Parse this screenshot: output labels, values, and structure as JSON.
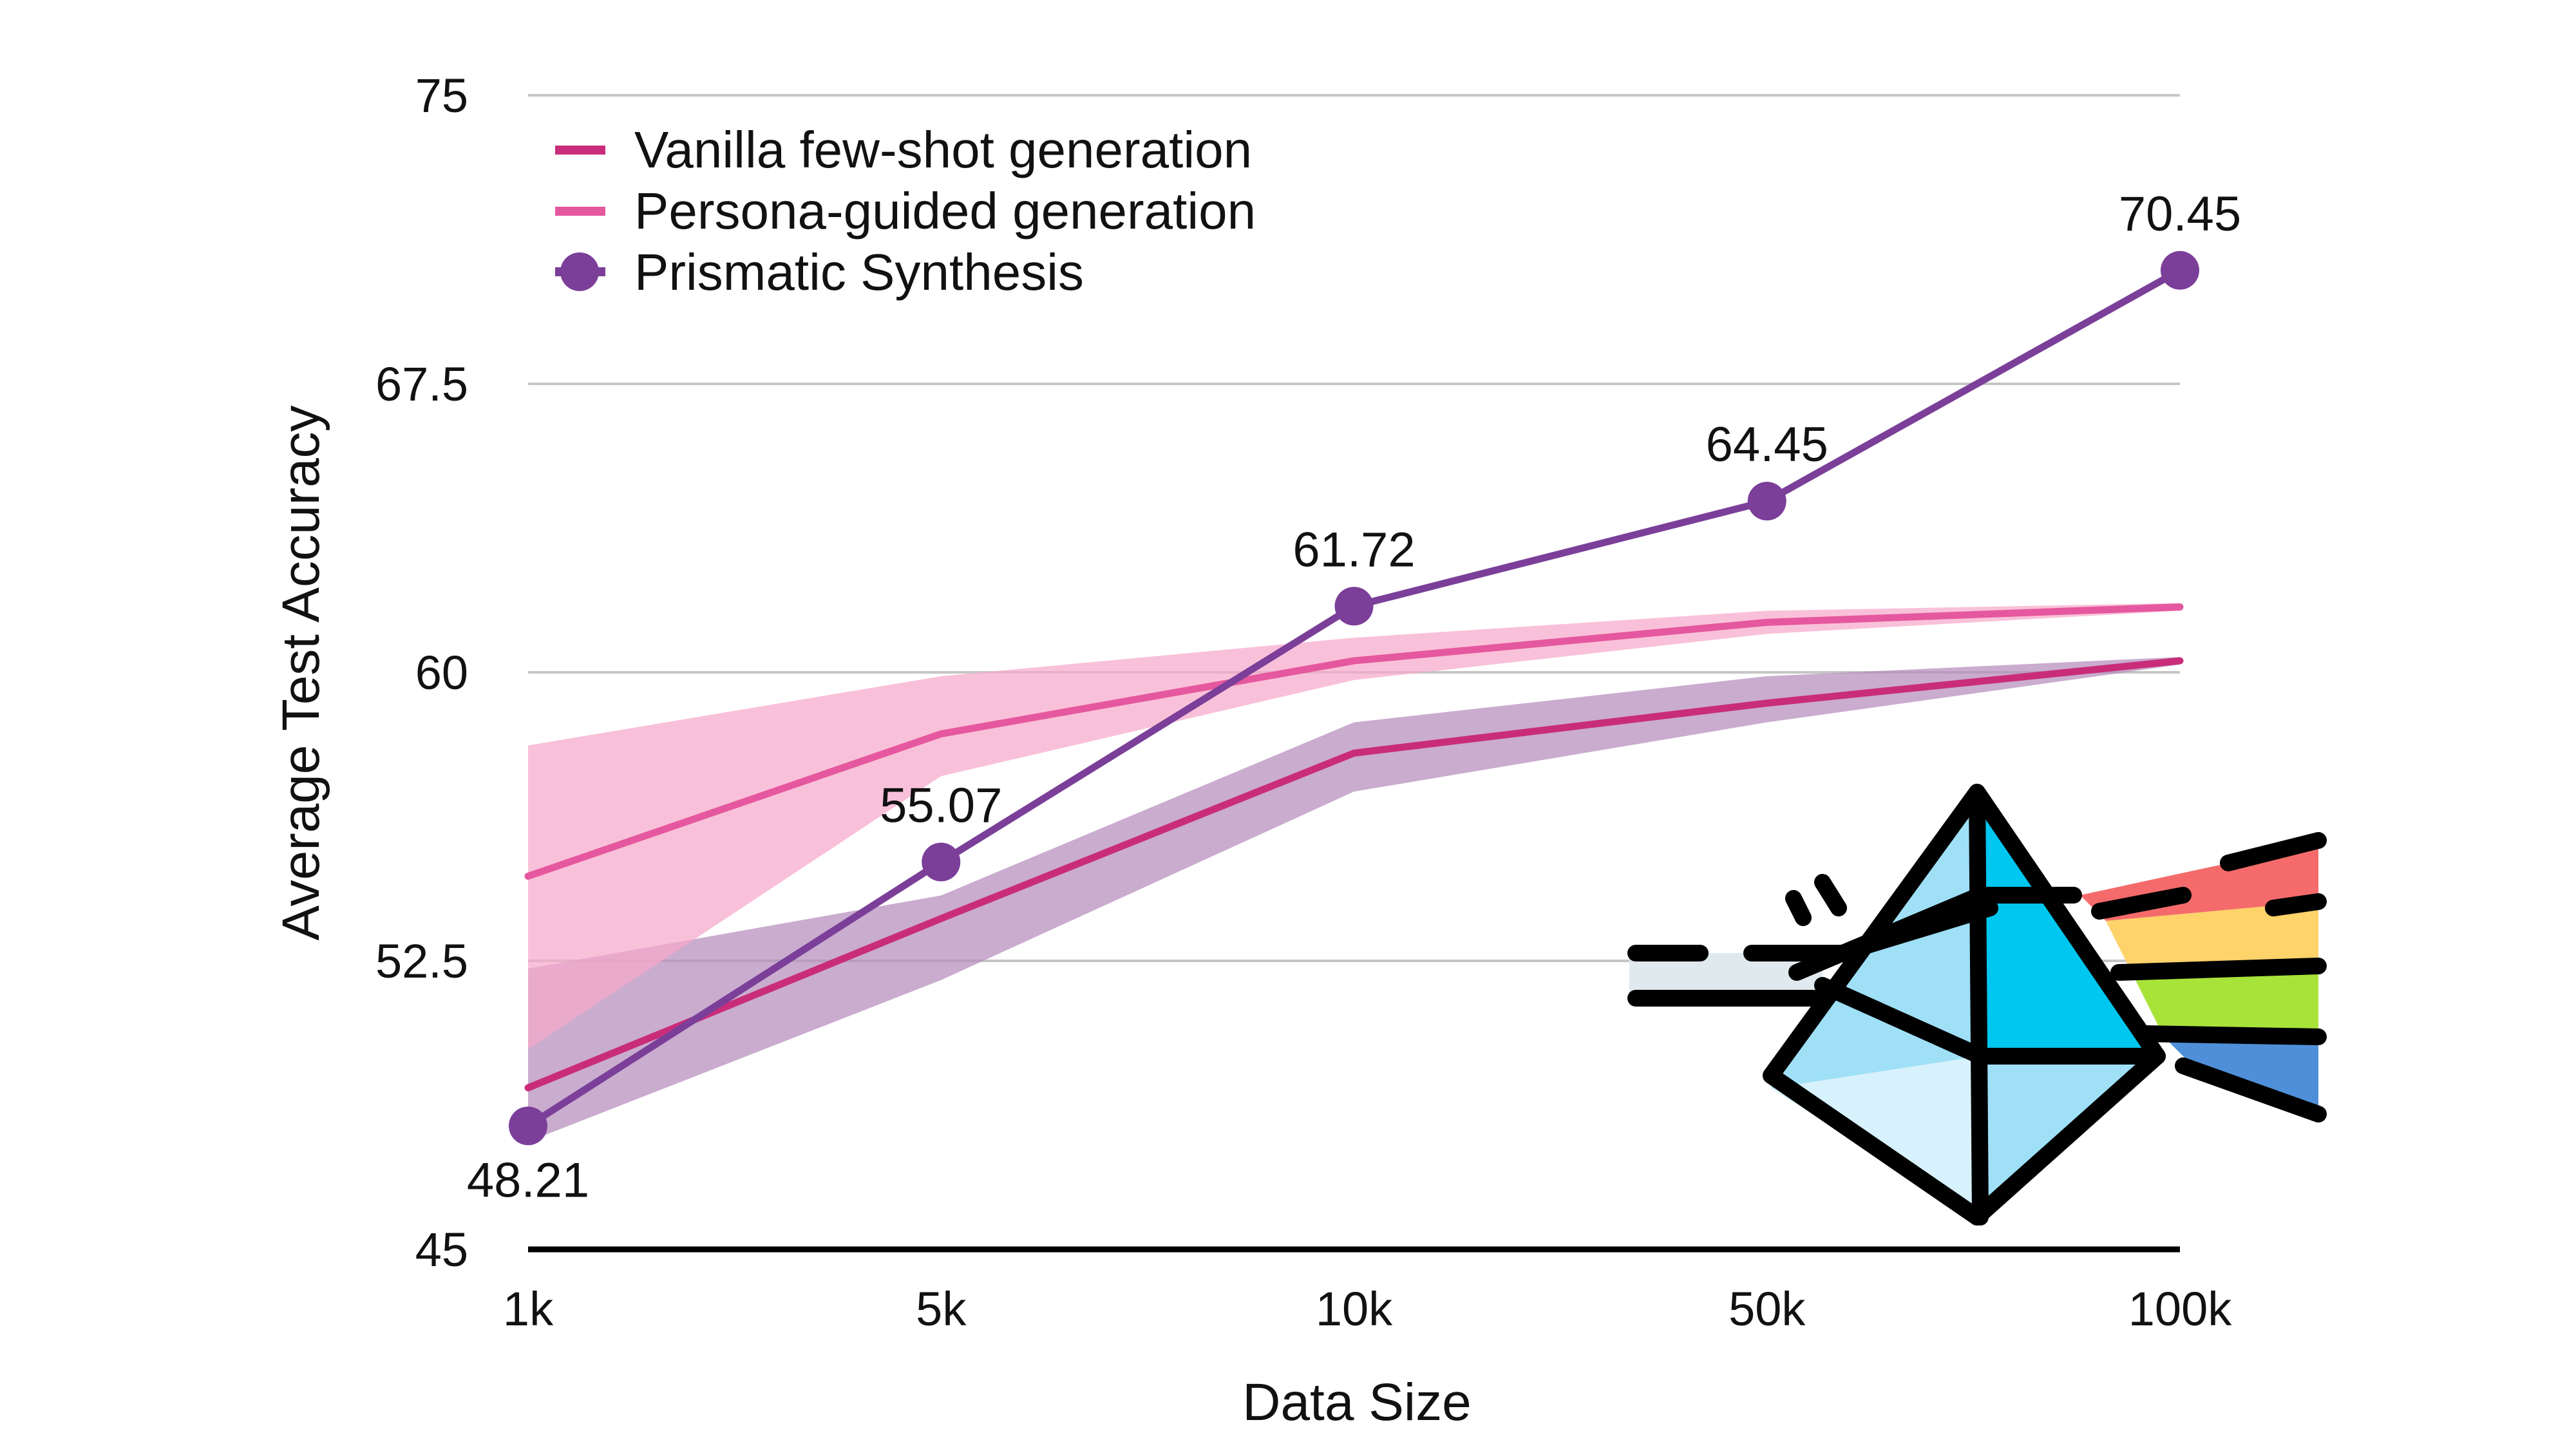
{
  "chart_data": {
    "type": "line",
    "title": "",
    "xlabel": "Data Size",
    "ylabel": "Average Test Accuracy",
    "categories": [
      "1k",
      "5k",
      "10k",
      "50k",
      "100k"
    ],
    "ylim": [
      45,
      75
    ],
    "yticks": [
      45,
      52.5,
      60,
      67.5,
      75
    ],
    "ytick_labels": [
      "45",
      "52.5",
      "60",
      "67.5",
      "75"
    ],
    "grid": true,
    "legend_position": "top-left",
    "series": [
      {
        "name": "Vanilla few-shot generation",
        "color": "#c92d7a",
        "values": [
          49.2,
          53.6,
          57.9,
          59.2,
          60.3
        ],
        "band_lower": [
          47.8,
          52.0,
          56.9,
          58.7,
          60.2
        ],
        "band_upper": [
          52.3,
          54.2,
          58.7,
          59.9,
          60.4
        ],
        "band_color": "#b58cbd",
        "marker": false
      },
      {
        "name": "Persona-guided generation",
        "color": "#e5589f",
        "values": [
          54.7,
          58.4,
          60.3,
          61.3,
          61.7
        ],
        "band_lower": [
          50.2,
          57.3,
          59.8,
          61.0,
          61.6
        ],
        "band_upper": [
          58.1,
          59.9,
          60.9,
          61.6,
          61.8
        ],
        "band_color": "#f7a9ca",
        "marker": false
      },
      {
        "name": "Prismatic Synthesis",
        "color": "#7b3f99",
        "values": [
          48.21,
          55.07,
          61.72,
          64.45,
          70.45
        ],
        "data_labels": [
          "48.21",
          "55.07",
          "61.72",
          "64.45",
          "70.45"
        ],
        "marker": true
      }
    ],
    "annotations": [
      {
        "type": "icon",
        "name": "prism-rainbow-icon",
        "position": "bottom-right"
      }
    ]
  }
}
